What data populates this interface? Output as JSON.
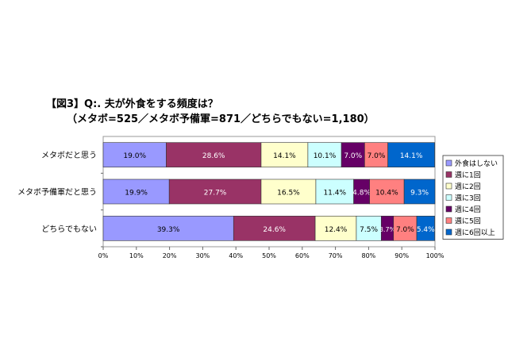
{
  "chart_data": {
    "type": "bar",
    "orientation": "horizontal",
    "stacked": "percent",
    "title": "【図3】Q:. 夫が外食をする頻度は？",
    "subtitle": "（メタボ=525／メタボ予備軍=871／どちらでもない=1,180）",
    "categories": [
      "メタボだと思う",
      "メタボ予備軍だと思う",
      "どちらでもない"
    ],
    "series": [
      {
        "name": "外食はしない",
        "color": "#9999ff",
        "label_color": "#000000",
        "values": [
          19.0,
          19.9,
          39.3
        ]
      },
      {
        "name": "週に1回",
        "color": "#993366",
        "label_color": "#ffffff",
        "values": [
          28.6,
          27.7,
          24.6
        ]
      },
      {
        "name": "週に2回",
        "color": "#ffffcc",
        "label_color": "#000000",
        "values": [
          14.1,
          16.5,
          12.4
        ]
      },
      {
        "name": "週に3回",
        "color": "#ccffff",
        "label_color": "#000000",
        "values": [
          10.1,
          11.4,
          7.5
        ]
      },
      {
        "name": "週に4回",
        "color": "#660066",
        "label_color": "#ffffff",
        "values": [
          7.0,
          4.8,
          3.7
        ]
      },
      {
        "name": "週に5回",
        "color": "#ff8080",
        "label_color": "#000000",
        "values": [
          7.0,
          10.4,
          7.0
        ]
      },
      {
        "name": "週に6回以上",
        "color": "#0066cc",
        "label_color": "#ffffff",
        "values": [
          14.1,
          9.3,
          5.4
        ]
      }
    ],
    "xlim": [
      0,
      100
    ],
    "xticks": [
      "0%",
      "10%",
      "20%",
      "30%",
      "40%",
      "50%",
      "60%",
      "70%",
      "80%",
      "90%",
      "100%"
    ],
    "legend": "right",
    "grid": false
  }
}
